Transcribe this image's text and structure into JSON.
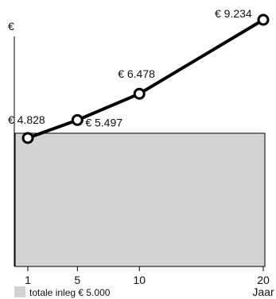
{
  "chart_data": {
    "type": "line",
    "ylabel": "€",
    "xlabel": "Jaar",
    "x": [
      1,
      5,
      10,
      20
    ],
    "xlim": [
      0,
      20
    ],
    "series": [
      {
        "values": [
          4828,
          5497,
          6478,
          9234
        ],
        "data_labels": [
          "€ 4.828",
          "€ 5.497",
          "€ 6.478",
          "€ 9.234"
        ]
      }
    ],
    "baseline": {
      "value": 5000,
      "legend_label": "totale inleg € 5.000"
    },
    "ylim": [
      4000,
      9500
    ],
    "grid": false,
    "colors": {
      "line": "#000000",
      "marker_fill": "#ffffff",
      "baseline_fill": "#d3d3d3",
      "baseline_stroke": "#000000"
    }
  }
}
